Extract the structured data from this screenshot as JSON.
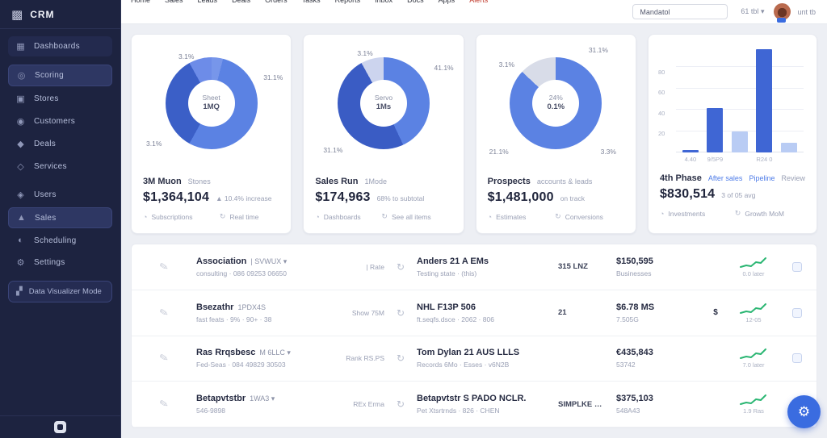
{
  "sidebar": {
    "logo": "CRM",
    "logo_icon": "▩",
    "items": [
      {
        "icon": "▦",
        "label": "Dashboards",
        "style": "soft"
      },
      {
        "icon": "◎",
        "label": "Scoring",
        "style": "active"
      },
      {
        "icon": "▣",
        "label": "Stores",
        "style": ""
      },
      {
        "icon": "◉",
        "label": "Customers",
        "style": ""
      },
      {
        "icon": "◆",
        "label": "Deals",
        "style": ""
      },
      {
        "icon": "◇",
        "label": "Services",
        "style": ""
      },
      {
        "icon": "◈",
        "label": "Users",
        "style": "gap"
      },
      {
        "icon": "▲",
        "label": "Sales",
        "style": "active"
      },
      {
        "icon": "◐",
        "label": "Scheduling",
        "style": ""
      },
      {
        "icon": "⚙",
        "label": "Settings",
        "style": ""
      }
    ],
    "viz": {
      "icon": "▞",
      "label": "Data Visualizer Mode"
    }
  },
  "topbar": {
    "nav": [
      {
        "label": "Home",
        "style": ""
      },
      {
        "label": "Sales",
        "style": ""
      },
      {
        "label": "Leads",
        "style": ""
      },
      {
        "label": "Deals",
        "style": ""
      },
      {
        "label": "Orders",
        "style": ""
      },
      {
        "label": "Tasks",
        "style": ""
      },
      {
        "label": "Reports",
        "style": ""
      },
      {
        "label": "Inbox",
        "style": ""
      },
      {
        "label": "Docs",
        "style": ""
      },
      {
        "label": "Apps",
        "style": ""
      },
      {
        "label": "Alerts",
        "style": "accent"
      }
    ],
    "search_value": "Mandatol",
    "meta": "61 tbl ▾",
    "user": "unt tb"
  },
  "cards": [
    {
      "labels": [
        {
          "t": "3.1%"
        },
        {
          "t": "31.1%"
        },
        {
          "t": "3.1%"
        }
      ],
      "center1": "Sheet",
      "center2": "1MQ",
      "donut": [
        {
          "c": "#7796ea",
          "p": 4
        },
        {
          "c": "#5b82e3",
          "p": 54
        },
        {
          "c": "#3b5fc7",
          "p": 34
        },
        {
          "c": "#6d8ce8",
          "p": 8
        }
      ],
      "title": "3M Muon",
      "title_sub": "Stones",
      "value": "$1,364,104",
      "value_sub": "▲ 10.4% increase",
      "foot_l": "Subscriptions",
      "foot_r": "Real time",
      "foot_l_icon": "◔",
      "foot_r_icon": "↻"
    },
    {
      "labels": [
        {
          "t": "3.1%"
        },
        {
          "t": "41.1%"
        },
        {
          "t": "31.1%"
        }
      ],
      "center1": "Servo",
      "center2": "1Ms",
      "donut": [
        {
          "c": "#5b82e3",
          "p": 43
        },
        {
          "c": "#3a5cc4",
          "p": 49
        },
        {
          "c": "#ccd4ee",
          "p": 8
        }
      ],
      "title": "Sales Run",
      "title_sub": "1Mode",
      "value": "$174,963",
      "value_sub": "68% to subtotal",
      "foot_l": "Dashboards",
      "foot_r": "See all items",
      "foot_l_icon": "◔",
      "foot_r_icon": "↻"
    },
    {
      "labels": [
        {
          "t": "31.1%"
        },
        {
          "t": "3.1%"
        },
        {
          "t": "21.1%"
        },
        {
          "t": "3.3%"
        }
      ],
      "center1": "24%",
      "center2": "0.1%",
      "donut": [
        {
          "c": "#5b82e3",
          "p": 87
        },
        {
          "c": "#d8dce8",
          "p": 13
        }
      ],
      "title": "Prospects",
      "title_sub": "accounts & leads",
      "value": "$1,481,000",
      "value_sub": "on track",
      "foot_l": "Estimates",
      "foot_r": "Conversions",
      "foot_l_icon": "◔",
      "foot_r_icon": "↻"
    },
    {
      "title": "4th Phase",
      "links": [
        {
          "t": "After sales"
        },
        {
          "t": "Pipeline"
        }
      ],
      "title_sub": "Review",
      "value": "$830,514",
      "value_sub": "3 of 05 avg",
      "foot_l": "Investments",
      "foot_r": "Growth MoM",
      "foot_l_icon": "◔",
      "foot_r_icon": "↻",
      "chart": {
        "yticks": [
          "80",
          "60",
          "40",
          "20"
        ],
        "bars": [
          {
            "v": 2,
            "s": "dark",
            "x": "4.40"
          },
          {
            "v": 42,
            "s": "dark",
            "x": "9/5P9"
          },
          {
            "v": 20,
            "s": "light",
            "x": ""
          },
          {
            "v": 97,
            "s": "dark",
            "x": "R24 0"
          },
          {
            "v": 9,
            "s": "light",
            "x": ""
          }
        ]
      }
    }
  ],
  "chart_data": [
    {
      "type": "pie",
      "title": "3M Muon — Stones",
      "values": [
        54,
        34,
        8,
        4
      ],
      "labels_shown": [
        "31.1%",
        "3.1%",
        "3.1%"
      ],
      "center": "Sheet 1MQ",
      "legend_position": "none"
    },
    {
      "type": "pie",
      "title": "Sales Run — 1Mode",
      "values": [
        43,
        49,
        8
      ],
      "labels_shown": [
        "3.1%",
        "41.1%",
        "31.1%"
      ],
      "center": "Servo 1Ms",
      "legend_position": "none"
    },
    {
      "type": "pie",
      "title": "Prospects",
      "values": [
        87,
        13
      ],
      "labels_shown": [
        "31.1%",
        "3.1%",
        "21.1%",
        "3.3%"
      ],
      "center": "24% 0.1%",
      "legend_position": "none"
    },
    {
      "type": "bar",
      "title": "4th Phase",
      "categories": [
        "4.40",
        "9/5P9",
        "",
        "R24 0",
        ""
      ],
      "values": [
        2,
        42,
        20,
        97,
        9
      ],
      "ylim": [
        0,
        100
      ],
      "yticks": [
        20,
        40,
        60,
        80
      ],
      "grid": true
    }
  ],
  "table": {
    "rows": [
      {
        "sketch": "✎",
        "name": "Association",
        "suffix": "| SVWUX ▾",
        "sub": "consulting · 086 09253 06650",
        "status": "| Rate",
        "company": "Anders 21 A EMs",
        "company_sub": "Testing state · (this)",
        "metric": "315 LNZ",
        "amount": "$150,595",
        "amount_sub": "Businesses",
        "extra": "",
        "spark_sub": "0.0 later"
      },
      {
        "sketch": "✎",
        "name": "Bsezathr",
        "suffix": "1PDX4S",
        "sub": "fast feats · 9% · 90+ · 38",
        "status": "Show 75M",
        "company": "NHL F13P 506",
        "company_sub": "ft.seqfs.dsce · 2062 · 806",
        "metric": "21",
        "amount": "$6.78 MS",
        "amount_sub": "7.505G",
        "extra": "$",
        "spark_sub": "12-05"
      },
      {
        "sketch": "✎",
        "name": "Ras Rrqsbesc",
        "suffix": "M 6LLC ▾",
        "sub": "Fed-Seas · 084 49829 30503",
        "status": "Rank RS.PS",
        "company": "Tom Dylan 21 AUS LLLS",
        "company_sub": "Records 6Mo · Esses · v6N2B",
        "metric": "",
        "amount": "€435,843",
        "amount_sub": "53742",
        "extra": "",
        "spark_sub": "7.0 later"
      },
      {
        "sketch": "✎",
        "name": "Betapvtstbr",
        "suffix": "1WA3 ▾",
        "sub": "546-9898",
        "status": "REx Erma",
        "company": "Betapvtstr S PADO NCLR.",
        "company_sub": "Pet Xtsrtrnds · 826 · CHEN",
        "metric": "SIMPLKE …",
        "amount": "$375,103",
        "amount_sub": "548A43",
        "extra": "",
        "spark_sub": "1.9 Ras"
      }
    ]
  },
  "fab": {
    "icon": "⚙"
  }
}
